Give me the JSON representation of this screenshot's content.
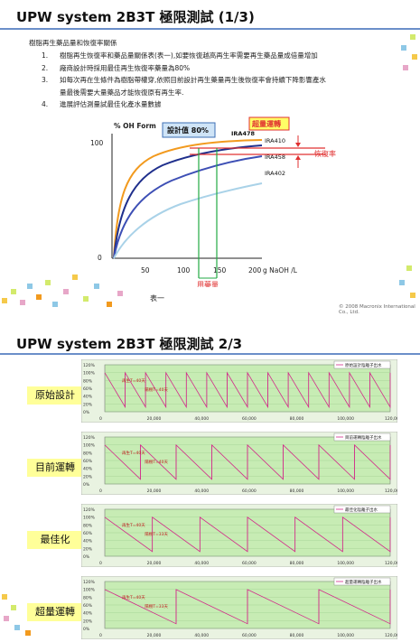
{
  "slide1": {
    "title": "UPW system 2B3T 極限測試 (1/3)",
    "intro": "樹脂再生藥品量和恢復率關係",
    "items": [
      {
        "num": "1.",
        "text": "樹脂再生恢復率和藥品量關係表(表一),如要恢復越高再生率需要再生藥品量成倍量增加"
      },
      {
        "num": "2.",
        "text": "廠商設計時採用最佳再生恢復率藥量為80%"
      },
      {
        "num": "3.",
        "text": "如每次再在生條件為樹脂帶權穿,依照目前設計再生藥量再生後恢復率會持續下降影響產水"
      },
      {
        "num": "",
        "text": "量最後需要大量藥品才能恢復原有再生率."
      },
      {
        "num": "4.",
        "text": "進展評估測量試最佳化產水量數據"
      }
    ],
    "caption": "表一",
    "copyright": "© 2008 Macronix International Co., Ltd.",
    "chart": {
      "ylabel": "% OH Form",
      "xlabel": "g NaOH /L",
      "yticks": [
        "100",
        "0"
      ],
      "xticks": [
        "50",
        "100",
        "150",
        "200"
      ],
      "callout_design": "設計值 80%",
      "callout_over": "超量運轉",
      "dose_label": "用藥量",
      "recovery_label": "恢復率",
      "series_labels": [
        "IRA478",
        "IRA410",
        "IRA458",
        "IRA402"
      ],
      "colors": {
        "orange": "#f29a1e",
        "blue": "#1f2f8c",
        "navy": "#3d4fb5",
        "light": "#a9d2e8",
        "red": "#e03030",
        "green": "#22aa44"
      }
    }
  },
  "slide2": {
    "title": "UPW system 2B3T 極限測試 2/3",
    "rows": [
      {
        "label": "原始設計",
        "legend": "原始設計陰離子出水",
        "peak": "再生T=40天",
        "low": "陽樹T=40天",
        "cycles": 14,
        "xticks": [
          "0",
          "20,000",
          "40,000",
          "60,000",
          "80,000",
          "100,000",
          "120,000"
        ]
      },
      {
        "label": "目前運轉",
        "legend": "目前運轉陰離子出水",
        "peak": "再生T=40天",
        "low": "陽樹T=40天",
        "cycles": 8,
        "xticks": [
          "0",
          "20,000",
          "40,000",
          "60,000",
          "80,000",
          "100,000",
          "120,000"
        ]
      },
      {
        "label": "最佳化",
        "legend": "最佳化陰離子出水",
        "peak": "再生T=40天",
        "low": "陽樹T=33天",
        "cycles": 6,
        "xticks": [
          "0",
          "20,000",
          "40,000",
          "60,000",
          "80,000",
          "100,000",
          "120,000"
        ]
      },
      {
        "label": "超量運轉",
        "legend": "超量運轉陰離子出水",
        "peak": "再生T=40天",
        "low": "陽樹T=33天",
        "cycles": 4,
        "xticks": [
          "0",
          "20,000",
          "40,000",
          "60,000",
          "80,000",
          "100,000",
          "120,000"
        ]
      }
    ],
    "yticks": [
      "120%",
      "100%",
      "80%",
      "60%",
      "40%",
      "20%",
      "0%"
    ]
  }
}
